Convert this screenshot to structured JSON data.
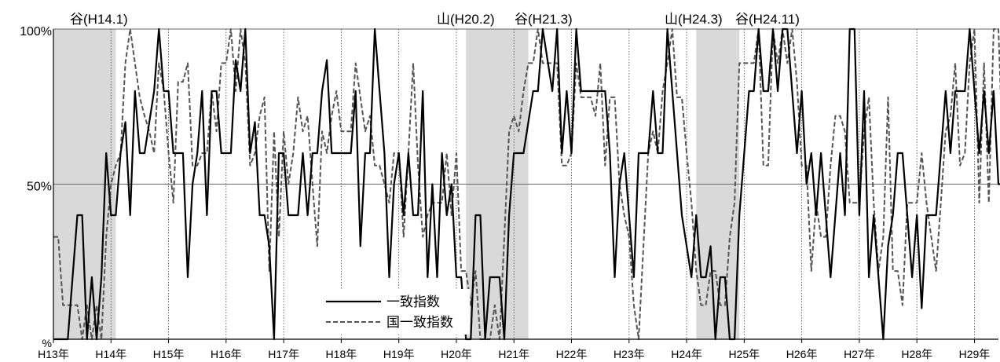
{
  "chart_data": {
    "type": "line",
    "y_unit_label": "%",
    "ylim": [
      0,
      100
    ],
    "y_ticks": [
      {
        "value": 0,
        "label": "%"
      },
      {
        "value": 50,
        "label": "50%"
      },
      {
        "value": 100,
        "label": "100%"
      }
    ],
    "x_start_month": 0,
    "x_end_month": 197,
    "x_ticks": [
      "H13年",
      "H14年",
      "H15年",
      "H16年",
      "H17年",
      "H18年",
      "H19年",
      "H20年",
      "H21年",
      "H22年",
      "H23年",
      "H24年",
      "H25年",
      "H26年",
      "H27年",
      "H28年",
      "H29年"
    ],
    "shaded_periods": [
      [
        0,
        13
      ],
      [
        86,
        99
      ],
      [
        134,
        143
      ]
    ],
    "annotations": [
      "谷(H14.1)",
      "山(H20.2)",
      "谷(H21.3)",
      "山(H24.3)",
      "谷(H24.11)"
    ],
    "legend": [
      "一致指数",
      "国一致指数"
    ],
    "grid": "vertical dotted at each year; horizontal at 50% and 100%",
    "series": [
      {
        "name": "一致指数",
        "style": "solid",
        "color": "#000000",
        "values": [
          0,
          0,
          0,
          0,
          20,
          40,
          40,
          0,
          20,
          0,
          20,
          60,
          40,
          40,
          60,
          70,
          40,
          80,
          60,
          60,
          70,
          80,
          100,
          80,
          80,
          60,
          60,
          60,
          20,
          50,
          60,
          80,
          40,
          80,
          80,
          60,
          60,
          60,
          90,
          80,
          100,
          60,
          70,
          40,
          40,
          30,
          0,
          60,
          60,
          40,
          40,
          40,
          60,
          40,
          60,
          60,
          80,
          90,
          60,
          60,
          60,
          60,
          60,
          80,
          30,
          60,
          60,
          100,
          80,
          60,
          20,
          50,
          60,
          40,
          60,
          40,
          40,
          80,
          20,
          50,
          20,
          60,
          40,
          50,
          20,
          20,
          0,
          0,
          40,
          40,
          0,
          20,
          20,
          20,
          0,
          40,
          60,
          60,
          60,
          70,
          80,
          80,
          100,
          90,
          80,
          100,
          60,
          80,
          60,
          100,
          80,
          80,
          80,
          80,
          80,
          80,
          60,
          20,
          50,
          60,
          40,
          20,
          60,
          60,
          60,
          80,
          60,
          60,
          100,
          80,
          60,
          40,
          30,
          20,
          40,
          20,
          20,
          30,
          0,
          20,
          20,
          0,
          0,
          40,
          60,
          80,
          80,
          100,
          80,
          80,
          100,
          80,
          100,
          100,
          80,
          60,
          80,
          50,
          60,
          40,
          60,
          40,
          20,
          40,
          60,
          40,
          100,
          100,
          40,
          80,
          20,
          40,
          20,
          0,
          30,
          40,
          60,
          60,
          40,
          20,
          40,
          10,
          40,
          40,
          40,
          60,
          80,
          60,
          80,
          80,
          80,
          100,
          80,
          60,
          80,
          60,
          80,
          50,
          50
        ]
      },
      {
        "name": "国一致指数",
        "style": "dashed",
        "color": "#555555",
        "values": [
          33,
          33,
          11,
          11,
          11,
          11,
          0,
          11,
          0,
          11,
          0,
          33,
          50,
          56,
          60,
          89,
          100,
          89,
          78,
          72,
          67,
          60,
          89,
          80,
          60,
          44,
          83,
          83,
          89,
          56,
          56,
          60,
          60,
          80,
          67,
          89,
          89,
          100,
          80,
          100,
          89,
          56,
          60,
          72,
          78,
          22,
          67,
          33,
          67,
          50,
          60,
          78,
          67,
          72,
          50,
          30,
          67,
          60,
          72,
          80,
          67,
          67,
          67,
          89,
          78,
          67,
          72,
          56,
          56,
          50,
          44,
          60,
          60,
          33,
          60,
          89,
          56,
          33,
          40,
          44,
          44,
          44,
          60,
          40,
          60,
          22,
          22,
          11,
          22,
          0,
          0,
          0,
          11,
          0,
          33,
          67,
          72,
          67,
          80,
          89,
          89,
          100,
          89,
          89,
          89,
          89,
          56,
          56,
          60,
          89,
          78,
          78,
          78,
          72,
          89,
          56,
          78,
          78,
          50,
          40,
          33,
          11,
          0,
          30,
          60,
          67,
          60,
          80,
          89,
          100,
          78,
          78,
          60,
          44,
          22,
          11,
          11,
          22,
          22,
          11,
          11,
          33,
          44,
          89,
          89,
          89,
          89,
          100,
          56,
          56,
          100,
          89,
          100,
          89,
          100,
          83,
          56,
          56,
          22,
          44,
          33,
          33,
          56,
          72,
          72,
          67,
          44,
          44,
          44,
          67,
          78,
          44,
          22,
          33,
          78,
          22,
          22,
          11,
          44,
          44,
          44,
          60,
          44,
          33,
          22,
          44,
          67,
          72,
          89,
          56,
          60,
          89,
          100,
          44,
          89,
          44,
          100,
          100,
          56
        ]
      }
    ]
  }
}
